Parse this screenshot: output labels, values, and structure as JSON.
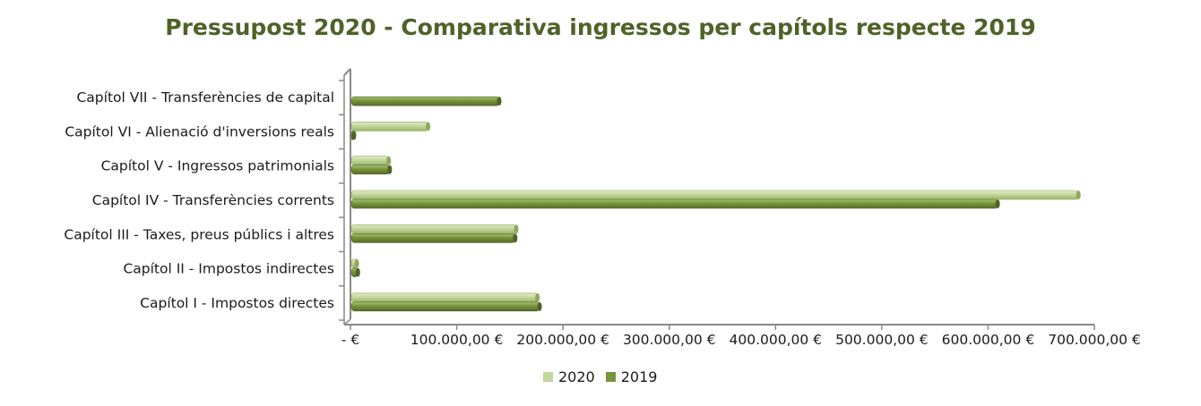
{
  "chart_data": {
    "type": "bar",
    "orientation": "horizontal",
    "title": "Pressupost 2020 - Comparativa ingressos per capítols respecte 2019",
    "xlabel": "",
    "ylabel": "",
    "xlim": [
      0,
      700000
    ],
    "x_ticks": [
      0,
      100000,
      200000,
      300000,
      400000,
      500000,
      600000,
      700000
    ],
    "x_tick_labels": [
      "-   €",
      "100.000,00 €",
      "200.000,00 €",
      "300.000,00 €",
      "400.000,00 €",
      "500.000,00 €",
      "600.000,00 €",
      "700.000,00 €"
    ],
    "grid": false,
    "legend_position": "bottom",
    "categories": [
      "Capítol I - Impostos directes",
      "Capítol II - Impostos indirectes",
      "Capítol III - Taxes, preus públics i altres",
      "Capítol IV - Transferències corrents",
      "Capítol V - Ingressos patrimonials",
      "Capítol VI - Alienació d'inversions reals",
      "Capítol VII - Transferències de capital"
    ],
    "series": [
      {
        "name": "2020",
        "color": "#c3d69b",
        "values": [
          176000,
          6000,
          156000,
          685000,
          36000,
          73000,
          0
        ]
      },
      {
        "name": "2019",
        "color": "#77933c",
        "values": [
          178000,
          7000,
          155000,
          609000,
          37000,
          1500,
          140000
        ]
      }
    ]
  }
}
